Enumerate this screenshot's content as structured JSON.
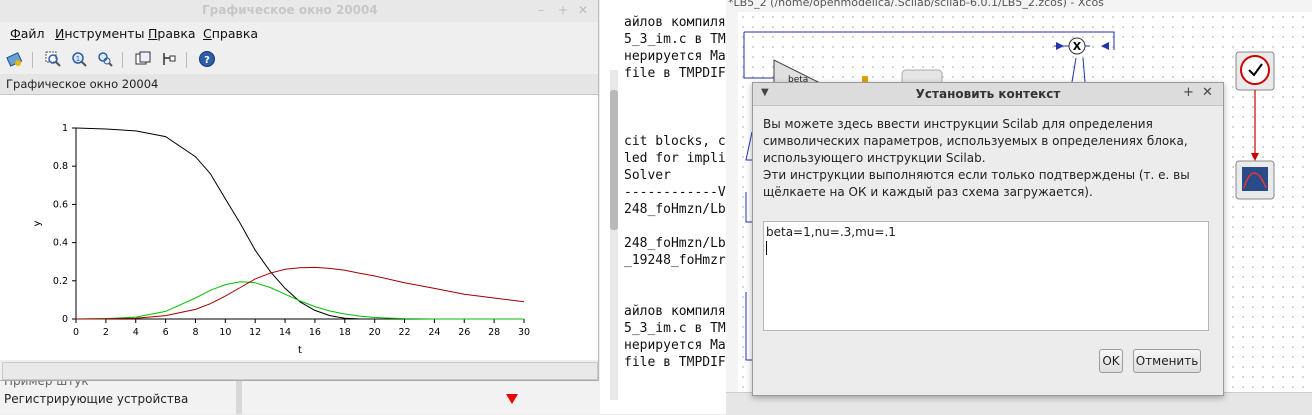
{
  "graphic_window": {
    "title": "Графическое окно 20004",
    "menu": [
      "Файл",
      "Инструменты",
      "Правка",
      "Справка"
    ],
    "tab_label": "Графическое окно 20004"
  },
  "chart_data": {
    "type": "line",
    "xlabel": "t",
    "ylabel": "y",
    "xlim": [
      0,
      30
    ],
    "ylim": [
      0,
      1
    ],
    "x_ticks": [
      0,
      2,
      4,
      6,
      8,
      10,
      12,
      14,
      16,
      18,
      20,
      22,
      24,
      26,
      28,
      30
    ],
    "y_ticks": [
      0,
      0.2,
      0.4,
      0.6,
      0.8,
      1
    ],
    "y_tick_labels": [
      "0",
      "0.2",
      "0.4",
      "0.6",
      "0.8",
      "1"
    ],
    "x": [
      0,
      2,
      4,
      6,
      8,
      9,
      10,
      11,
      12,
      13,
      14,
      15,
      16,
      17,
      18,
      19,
      20,
      22,
      24,
      26,
      28,
      30
    ],
    "series": [
      {
        "color": "#000000",
        "values": [
          1.0,
          0.995,
          0.985,
          0.955,
          0.85,
          0.76,
          0.63,
          0.5,
          0.36,
          0.25,
          0.16,
          0.09,
          0.045,
          0.018,
          0.004,
          0.0,
          0.0,
          0.0,
          0.0,
          0.0,
          0.0,
          0.0
        ]
      },
      {
        "color": "#00c000",
        "values": [
          0.0,
          0.002,
          0.01,
          0.04,
          0.11,
          0.15,
          0.18,
          0.195,
          0.19,
          0.165,
          0.13,
          0.095,
          0.065,
          0.042,
          0.026,
          0.015,
          0.008,
          0.002,
          0.0,
          0.0,
          0.0,
          0.0
        ]
      },
      {
        "color": "#a00000",
        "values": [
          0.0,
          0.001,
          0.004,
          0.018,
          0.05,
          0.08,
          0.12,
          0.165,
          0.21,
          0.24,
          0.26,
          0.268,
          0.27,
          0.265,
          0.255,
          0.24,
          0.225,
          0.19,
          0.16,
          0.13,
          0.11,
          0.09
        ]
      }
    ]
  },
  "console": {
    "lines": [
      "айлов компиля",
      "5_3_im.c в TM",
      "нерируется Ma",
      "file в TMPDIF",
      "",
      "",
      "",
      "cit blocks, c",
      "led for impli",
      "Solver",
      "------------V",
      "248_foHmzn/Lb",
      "",
      "248_foHmzn/Lb",
      "_19248_foHmzr",
      "",
      "",
      "айлов компиля",
      "5_3_im.c в TM",
      "нерируется Ma",
      "file в TMPDIF"
    ]
  },
  "background_left": {
    "item_partial": "Пример штук",
    "item_registering": "Регистрирующие устройства"
  },
  "xcos": {
    "title": "*LB5_2 (/home/openmodelica/.Scilab/scilab-6.0.1/LB5_2.zcos) - Xcos",
    "block_label": "beta"
  },
  "dialog": {
    "title": "Установить контекст",
    "desc_lines": [
      "Вы можете здесь ввести инструкции Scilab для определения",
      "символических параметров, используемых в определениях блока,",
      "использующего инструкции Scilab.",
      "Эти инструкции выполняются если только подтверждены (т. е. вы",
      "щёлкаете на ОК и каждый раз схема загружается)."
    ],
    "context_text": "beta=1,nu=.3,mu=.1",
    "ok_label": "OK",
    "cancel_label": "Отменить"
  }
}
